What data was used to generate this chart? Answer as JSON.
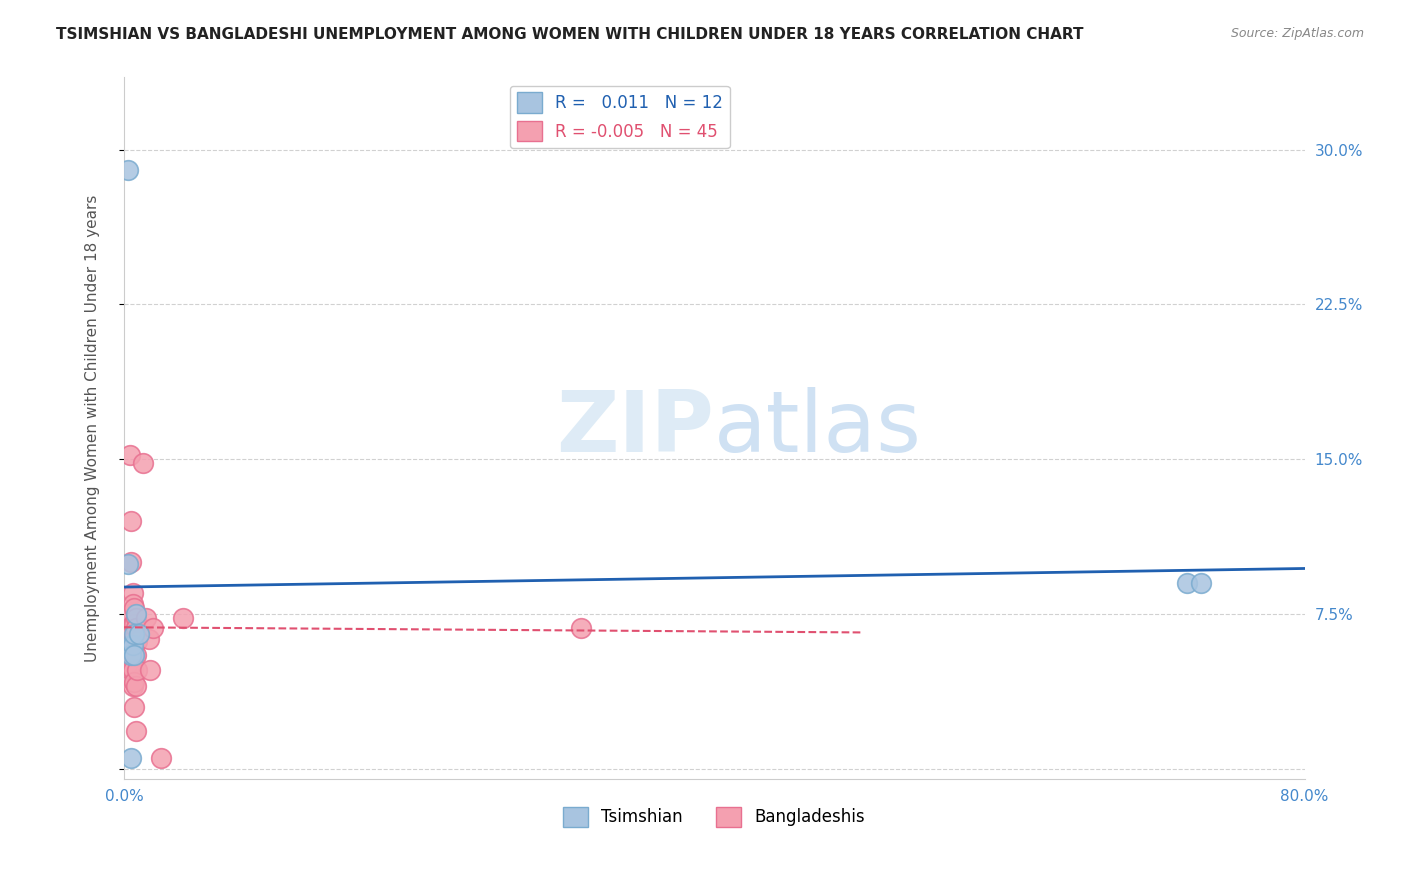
{
  "title": "TSIMSHIAN VS BANGLADESHI UNEMPLOYMENT AMONG WOMEN WITH CHILDREN UNDER 18 YEARS CORRELATION CHART",
  "source": "Source: ZipAtlas.com",
  "ylabel": "Unemployment Among Women with Children Under 18 years",
  "xlim": [
    0.0,
    0.8
  ],
  "ylim": [
    -0.005,
    0.335
  ],
  "xticks": [
    0.0,
    0.1,
    0.2,
    0.3,
    0.4,
    0.5,
    0.6,
    0.7,
    0.8
  ],
  "xtick_labels": [
    "0.0%",
    "",
    "",
    "",
    "",
    "",
    "",
    "",
    "80.0%"
  ],
  "yticks": [
    0.0,
    0.075,
    0.15,
    0.225,
    0.3
  ],
  "ytick_labels": [
    "",
    "7.5%",
    "15.0%",
    "22.5%",
    "30.0%"
  ],
  "tsimshian_color": "#a8c4e0",
  "bangladeshi_color": "#f4a0b0",
  "tsimshian_edge": "#7aabcf",
  "bangladeshi_edge": "#e87090",
  "trend_tsimshian_color": "#2060b0",
  "trend_bangladeshi_color": "#e05070",
  "grid_color": "#cccccc",
  "background_color": "#ffffff",
  "watermark_zip": "ZIP",
  "watermark_atlas": "atlas",
  "legend_r_tsimshian": "R =   0.011",
  "legend_n_tsimshian": "N = 12",
  "legend_r_bangladeshi": "R = -0.005",
  "legend_n_bangladeshi": "N = 45",
  "tsimshian_points": [
    [
      0.003,
      0.099
    ],
    [
      0.003,
      0.29
    ],
    [
      0.005,
      0.005
    ],
    [
      0.005,
      0.06
    ],
    [
      0.005,
      0.055
    ],
    [
      0.006,
      0.06
    ],
    [
      0.007,
      0.065
    ],
    [
      0.007,
      0.055
    ],
    [
      0.008,
      0.075
    ],
    [
      0.01,
      0.065
    ],
    [
      0.72,
      0.09
    ],
    [
      0.73,
      0.09
    ]
  ],
  "bangladeshi_points": [
    [
      0.002,
      0.062
    ],
    [
      0.002,
      0.058
    ],
    [
      0.002,
      0.05
    ],
    [
      0.003,
      0.068
    ],
    [
      0.003,
      0.075
    ],
    [
      0.003,
      0.06
    ],
    [
      0.003,
      0.057
    ],
    [
      0.004,
      0.152
    ],
    [
      0.004,
      0.065
    ],
    [
      0.004,
      0.055
    ],
    [
      0.004,
      0.05
    ],
    [
      0.005,
      0.12
    ],
    [
      0.005,
      0.1
    ],
    [
      0.005,
      0.075
    ],
    [
      0.005,
      0.062
    ],
    [
      0.005,
      0.058
    ],
    [
      0.005,
      0.048
    ],
    [
      0.006,
      0.085
    ],
    [
      0.006,
      0.08
    ],
    [
      0.006,
      0.07
    ],
    [
      0.006,
      0.062
    ],
    [
      0.006,
      0.055
    ],
    [
      0.006,
      0.048
    ],
    [
      0.006,
      0.04
    ],
    [
      0.007,
      0.078
    ],
    [
      0.007,
      0.07
    ],
    [
      0.007,
      0.063
    ],
    [
      0.007,
      0.055
    ],
    [
      0.007,
      0.042
    ],
    [
      0.007,
      0.03
    ],
    [
      0.008,
      0.073
    ],
    [
      0.008,
      0.068
    ],
    [
      0.008,
      0.055
    ],
    [
      0.008,
      0.04
    ],
    [
      0.008,
      0.018
    ],
    [
      0.009,
      0.062
    ],
    [
      0.009,
      0.048
    ],
    [
      0.013,
      0.148
    ],
    [
      0.015,
      0.073
    ],
    [
      0.017,
      0.063
    ],
    [
      0.018,
      0.048
    ],
    [
      0.02,
      0.068
    ],
    [
      0.025,
      0.005
    ],
    [
      0.04,
      0.073
    ],
    [
      0.31,
      0.068
    ]
  ],
  "tsimshian_trend": {
    "x_start": 0.0,
    "x_end": 0.8,
    "y_start": 0.088,
    "y_end": 0.097
  },
  "bangladeshi_trend": {
    "x_start": 0.0,
    "x_end": 0.5,
    "y_start": 0.0685,
    "y_end": 0.066
  }
}
